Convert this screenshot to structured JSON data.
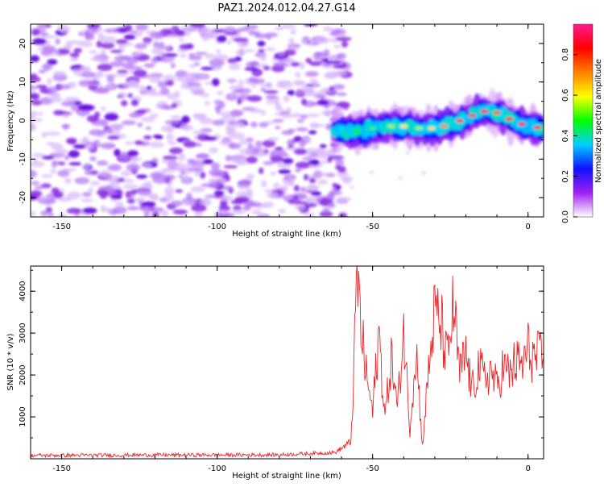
{
  "title": "PAZ1.2024.012.04.27.G14",
  "chart_data": [
    {
      "type": "heatmap",
      "xlabel": "Height of straight line (km)",
      "ylabel": "Frequency (Hz)",
      "xlim": [
        -160,
        5
      ],
      "ylim": [
        -25,
        25
      ],
      "x_ticks": [
        -150,
        -100,
        -50,
        0
      ],
      "y_ticks": [
        20,
        10,
        0,
        -10,
        -20
      ],
      "colorbar": {
        "label": "Normalized spectral amplitude",
        "range": [
          0,
          0.95
        ],
        "ticks": [
          0.0,
          0.2,
          0.4,
          0.6,
          0.8
        ],
        "colors": [
          "#ffffff",
          "#a020f0",
          "#1010ff",
          "#00d0ff",
          "#00ff00",
          "#ffff00",
          "#ff8000",
          "#ff0000",
          "#ff1a8c"
        ]
      },
      "signal_ridge": {
        "x": [
          -62,
          -55,
          -50,
          -45,
          -40,
          -35,
          -30,
          -25,
          -20,
          -15,
          -10,
          -5,
          0,
          5
        ],
        "y": [
          -2.5,
          -3,
          -2,
          -1.5,
          -1.5,
          -2,
          -2,
          -1,
          0.5,
          2.5,
          2,
          0,
          -1.5,
          -2
        ],
        "peak_amplitude": 0.9
      },
      "noise_region": {
        "x_range": [
          -160,
          -60
        ],
        "typical_amplitude": 0.1
      },
      "grid": false
    },
    {
      "type": "line",
      "xlabel": "Height of straight line (km)",
      "ylabel": "SNR (10 * v/v)",
      "xlim": [
        -160,
        5
      ],
      "ylim": [
        0,
        4600
      ],
      "x_ticks": [
        -150,
        -100,
        -50,
        0
      ],
      "y_ticks": [
        1000,
        2000,
        3000,
        4000
      ],
      "color": "#e8262a",
      "series": [
        {
          "name": "",
          "x": [
            -160,
            -140,
            -120,
            -100,
            -80,
            -62,
            -57,
            -56,
            -55,
            -54,
            -53,
            -52,
            -50,
            -48,
            -46,
            -44,
            -42,
            -40,
            -38,
            -36,
            -34,
            -32,
            -30,
            -28,
            -26,
            -24,
            -22,
            -20,
            -18,
            -16,
            -14,
            -12,
            -10,
            -8,
            -6,
            -4,
            -2,
            0,
            2,
            5
          ],
          "y": [
            80,
            85,
            90,
            90,
            95,
            150,
            400,
            2100,
            4550,
            3300,
            2600,
            2000,
            1100,
            3000,
            1000,
            2400,
            1200,
            3100,
            700,
            2700,
            300,
            2100,
            3500,
            3200,
            2300,
            3650,
            2000,
            2500,
            1600,
            2200,
            1900,
            2100,
            1700,
            2200,
            2000,
            2300,
            2200,
            2600,
            2400,
            2400
          ]
        }
      ],
      "grid": false
    }
  ]
}
